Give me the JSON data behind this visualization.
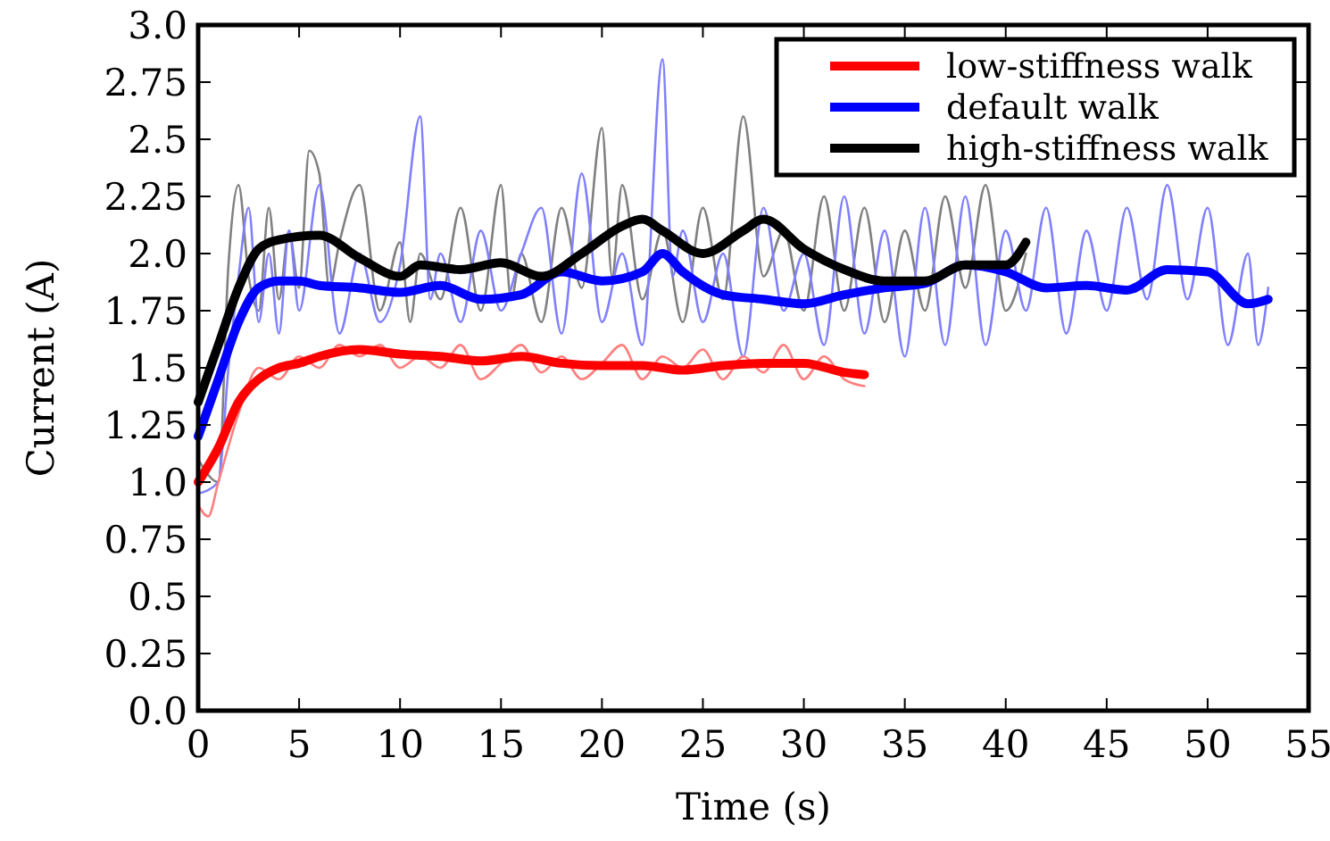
{
  "chart_data": {
    "type": "line",
    "xlabel": "Time (s)",
    "ylabel": "Current (A)",
    "xlim": [
      0,
      55
    ],
    "ylim": [
      0,
      3
    ],
    "xticks": [
      0,
      5,
      10,
      15,
      20,
      25,
      30,
      35,
      40,
      45,
      50,
      55
    ],
    "yticks": [
      {
        "value": 0,
        "label": "0.0"
      },
      0.25,
      0.5,
      0.75,
      {
        "value": 1,
        "label": "1.0"
      },
      1.25,
      1.5,
      1.75,
      {
        "value": 2,
        "label": "2.0"
      },
      2.25,
      2.5,
      2.75,
      {
        "value": 3,
        "label": "3.0"
      }
    ],
    "grid": false,
    "legend": "top right",
    "line_style": "solid",
    "marker": "none",
    "series": [
      {
        "color": "#808080",
        "x": [
          0,
          1,
          1.5,
          2,
          2.5,
          3,
          3.5,
          4,
          4.5,
          5,
          5.5,
          6,
          6.5,
          7,
          8,
          9,
          10,
          10.5,
          11,
          12,
          13,
          14,
          15,
          15.5,
          16,
          17,
          18,
          19,
          20,
          20.5,
          21,
          22,
          23,
          24,
          25,
          26,
          27,
          28,
          29,
          30,
          31,
          32,
          33,
          34,
          35,
          36,
          37,
          38,
          39,
          40,
          41
        ],
        "values": [
          1.1,
          1.0,
          1.95,
          2.3,
          1.9,
          1.75,
          2.2,
          1.8,
          2.1,
          1.85,
          2.45,
          2.35,
          1.85,
          2.05,
          2.3,
          1.75,
          2.05,
          1.7,
          2.0,
          1.8,
          2.2,
          1.75,
          2.3,
          1.8,
          2.0,
          1.7,
          2.2,
          1.85,
          2.55,
          1.9,
          2.3,
          1.8,
          2.1,
          1.7,
          2.2,
          1.8,
          2.6,
          1.9,
          2.1,
          1.75,
          2.25,
          1.75,
          2.2,
          1.7,
          2.1,
          1.75,
          2.25,
          1.85,
          2.3,
          1.75,
          2.0
        ]
      },
      {
        "color": "#8080ff",
        "x": [
          0,
          1,
          1.5,
          2,
          2.5,
          3,
          3.5,
          4,
          4.5,
          5,
          6,
          7,
          8,
          9,
          10,
          11,
          11.5,
          12,
          13,
          14,
          15,
          16,
          17,
          18,
          19,
          20,
          21,
          22,
          23,
          23.5,
          24,
          25,
          26,
          27,
          28,
          29,
          30,
          31,
          32,
          33,
          34,
          35,
          36,
          37,
          38,
          39,
          40,
          41,
          42,
          43,
          44,
          45,
          46,
          47,
          48,
          49,
          50,
          51,
          52,
          52.5,
          53
        ],
        "values": [
          0.95,
          1.0,
          1.5,
          1.9,
          2.2,
          1.7,
          2.0,
          1.65,
          2.1,
          1.75,
          2.3,
          1.65,
          2.0,
          1.7,
          1.95,
          2.6,
          1.8,
          2.0,
          1.7,
          2.1,
          1.75,
          2.0,
          2.2,
          1.65,
          2.35,
          1.7,
          2.0,
          1.6,
          2.85,
          1.9,
          2.1,
          1.7,
          2.0,
          1.55,
          2.2,
          1.75,
          2.0,
          1.6,
          2.25,
          1.65,
          2.1,
          1.55,
          2.2,
          1.6,
          2.25,
          1.6,
          2.1,
          1.75,
          2.2,
          1.65,
          2.1,
          1.75,
          2.2,
          1.8,
          2.3,
          1.8,
          2.2,
          1.6,
          2.0,
          1.6,
          1.85
        ]
      },
      {
        "color": "#ff8080",
        "x": [
          0,
          0.5,
          1,
          2,
          3,
          4,
          5,
          6,
          7,
          8,
          9,
          10,
          11,
          12,
          13,
          14,
          15,
          16,
          17,
          18,
          19,
          20,
          21,
          22,
          23,
          24,
          25,
          26,
          27,
          28,
          29,
          30,
          31,
          32,
          33
        ],
        "values": [
          0.9,
          0.85,
          1.0,
          1.3,
          1.5,
          1.45,
          1.55,
          1.5,
          1.6,
          1.55,
          1.6,
          1.5,
          1.55,
          1.5,
          1.6,
          1.45,
          1.52,
          1.6,
          1.48,
          1.55,
          1.45,
          1.52,
          1.6,
          1.45,
          1.55,
          1.5,
          1.58,
          1.45,
          1.55,
          1.48,
          1.6,
          1.45,
          1.55,
          1.45,
          1.42
        ]
      },
      {
        "name": "low-stiffness walk",
        "color": "#ff0000",
        "x": [
          0,
          1,
          2,
          3,
          4,
          5,
          6,
          8,
          10,
          12,
          14,
          16,
          18,
          20,
          22,
          24,
          26,
          28,
          30,
          32,
          33
        ],
        "values": [
          1.0,
          1.15,
          1.35,
          1.45,
          1.5,
          1.52,
          1.55,
          1.58,
          1.56,
          1.55,
          1.53,
          1.55,
          1.52,
          1.51,
          1.51,
          1.49,
          1.51,
          1.52,
          1.52,
          1.48,
          1.47
        ]
      },
      {
        "name": "default walk",
        "color": "#0000ff",
        "x": [
          0,
          1,
          2,
          3,
          4,
          5,
          6,
          8,
          10,
          12,
          14,
          16,
          18,
          20,
          22,
          23,
          24,
          26,
          28,
          30,
          32,
          34,
          36,
          38,
          40,
          42,
          44,
          46,
          48,
          50,
          52,
          53
        ],
        "values": [
          1.2,
          1.45,
          1.7,
          1.85,
          1.88,
          1.88,
          1.86,
          1.85,
          1.83,
          1.86,
          1.8,
          1.82,
          1.92,
          1.88,
          1.92,
          2.0,
          1.92,
          1.82,
          1.8,
          1.78,
          1.82,
          1.85,
          1.87,
          1.95,
          1.92,
          1.85,
          1.86,
          1.84,
          1.93,
          1.92,
          1.78,
          1.8
        ]
      },
      {
        "name": "high-stiffness walk",
        "color": "#000000",
        "x": [
          0,
          1,
          2,
          3,
          4,
          6,
          8,
          10,
          11,
          13,
          15,
          17,
          19,
          21,
          22,
          23,
          25,
          27,
          28,
          30,
          32,
          34,
          36,
          38,
          40,
          41
        ],
        "values": [
          1.35,
          1.6,
          1.85,
          2.02,
          2.06,
          2.08,
          1.98,
          1.9,
          1.95,
          1.93,
          1.96,
          1.9,
          2.0,
          2.12,
          2.15,
          2.1,
          2.0,
          2.1,
          2.15,
          2.02,
          1.93,
          1.88,
          1.88,
          1.95,
          1.95,
          2.05
        ]
      }
    ]
  }
}
